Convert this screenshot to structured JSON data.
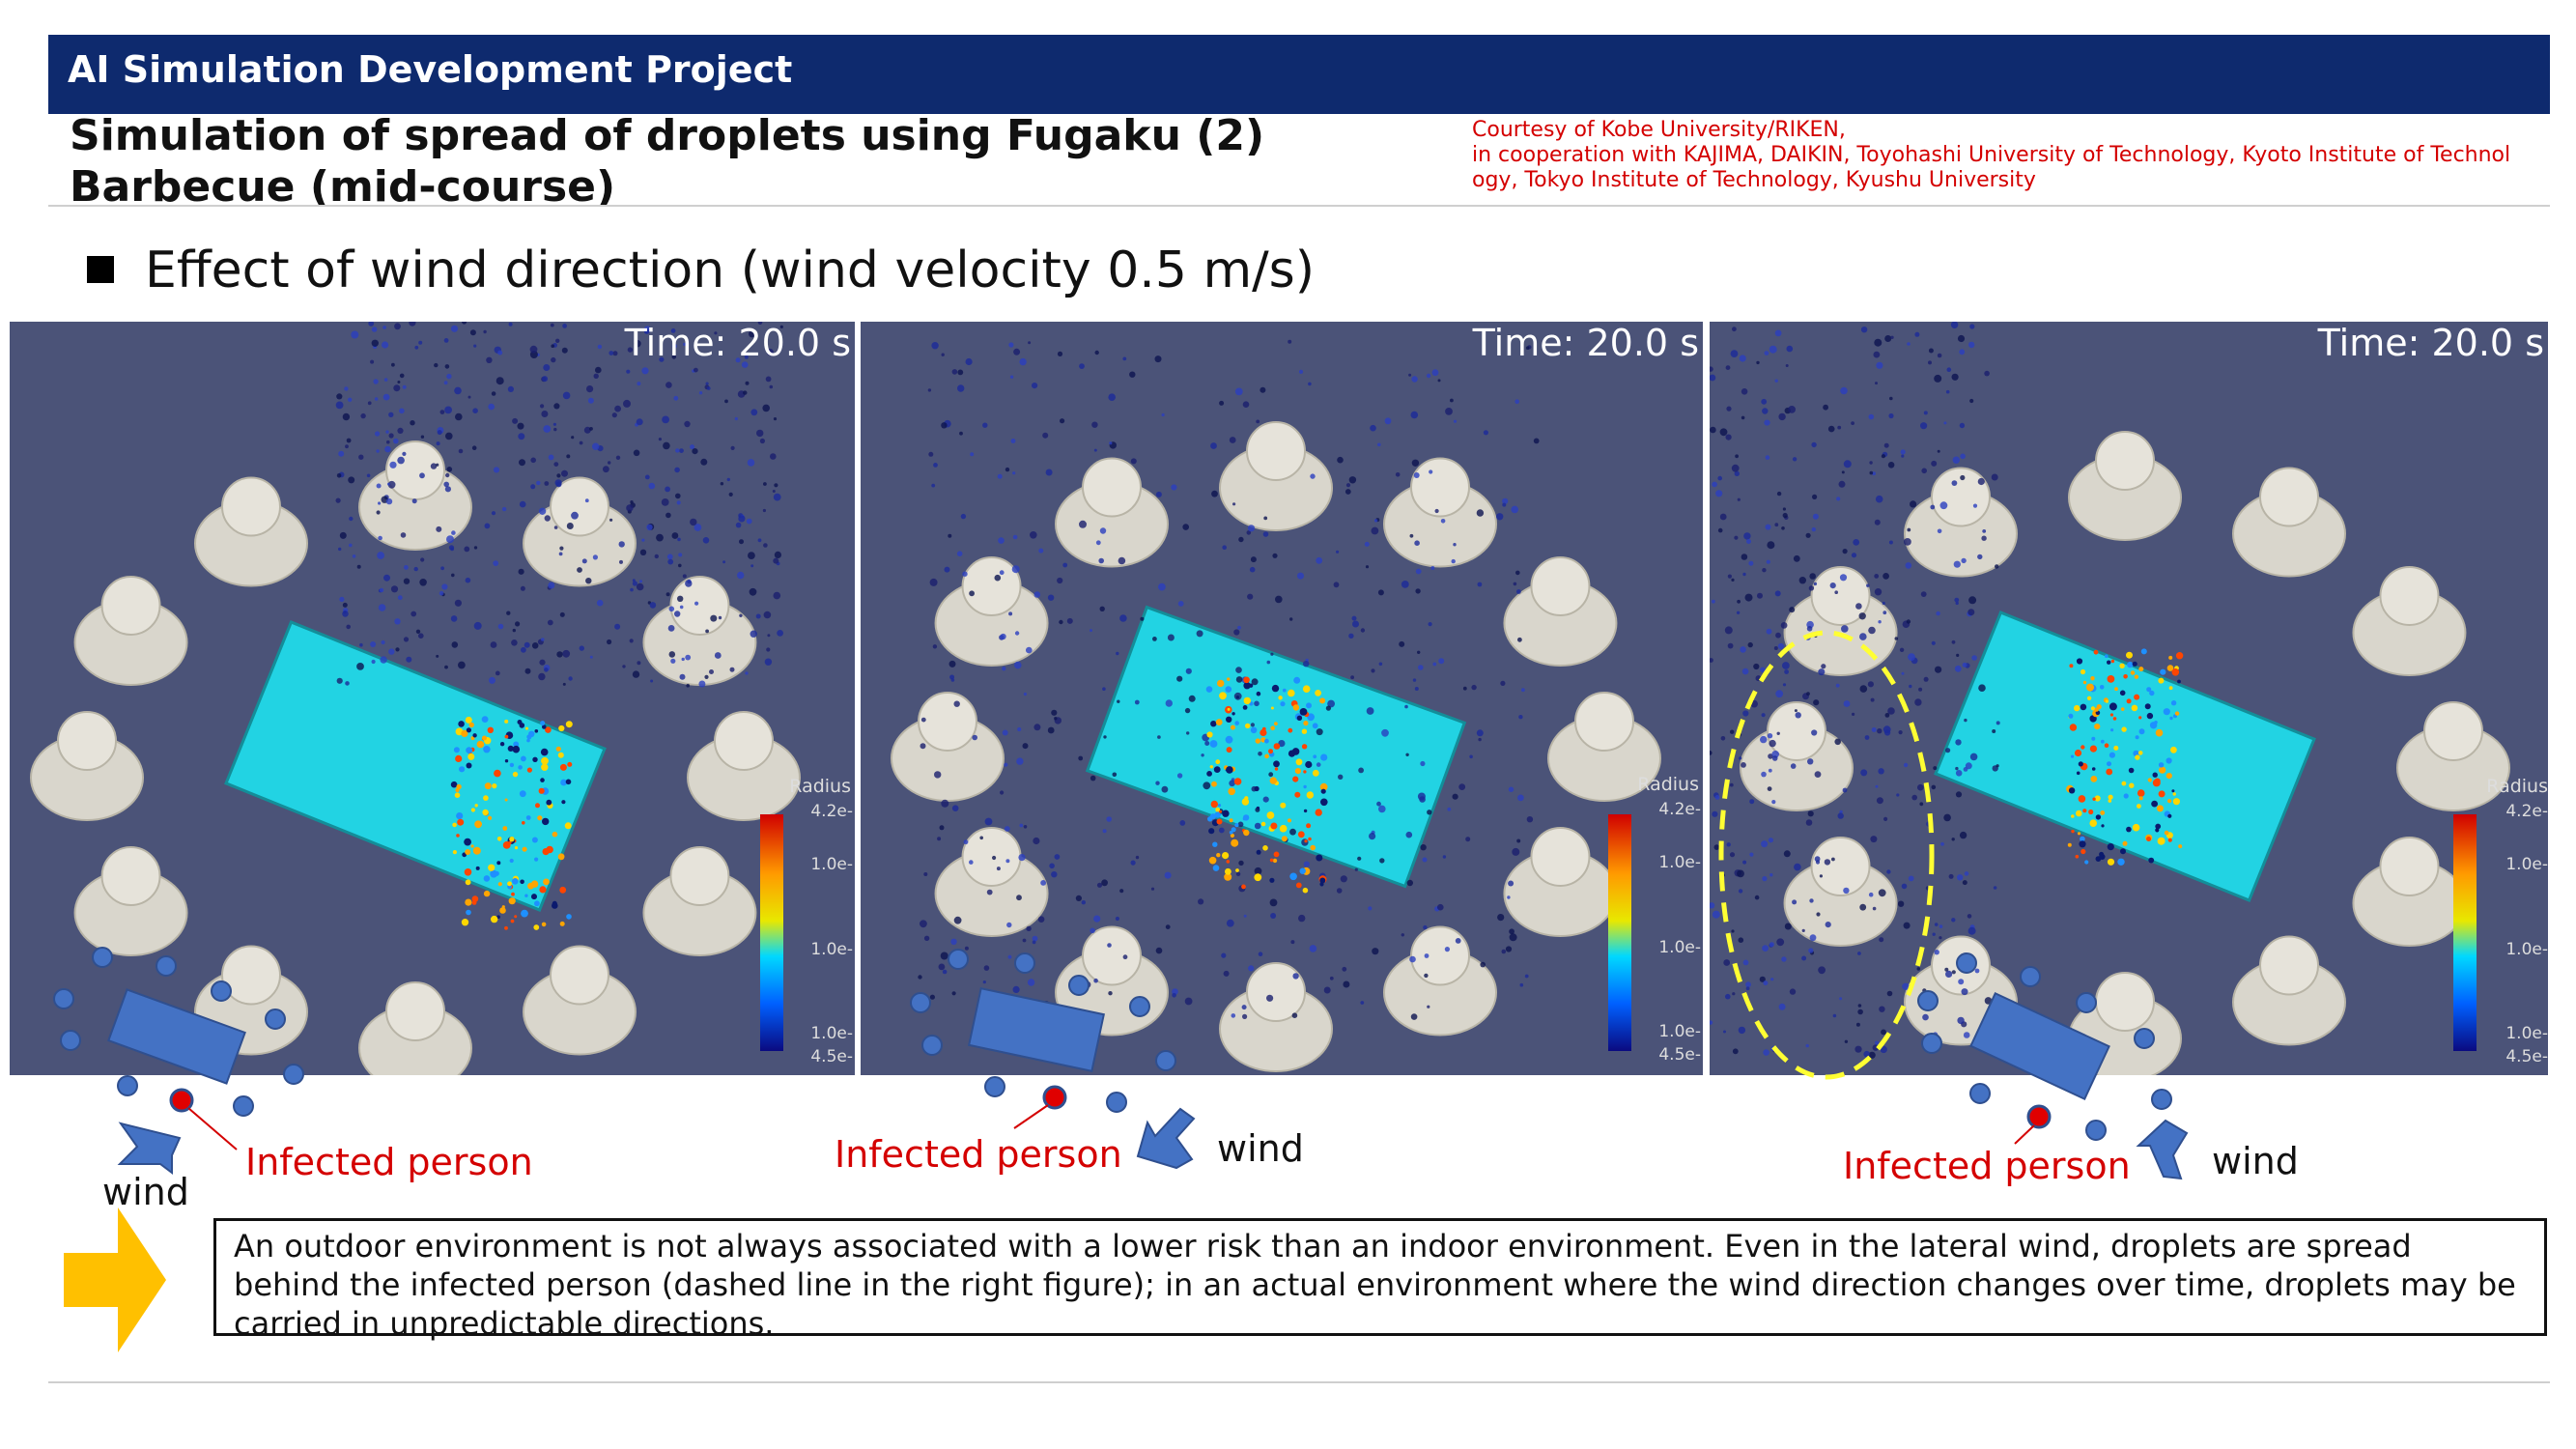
{
  "header": {
    "title": "AI Simulation Development Project"
  },
  "slide": {
    "title_line1": "Simulation of spread of droplets using Fugaku (2)",
    "title_line2": "Barbecue (mid-course)",
    "courtesy": [
      "Courtesy of Kobe University/RIKEN,",
      "in cooperation with KAJIMA, DAIKIN, Toyohashi University of Technology, Kyoto Institute of Technol",
      "ogy, Tokyo Institute of Technology, Kyushu University"
    ],
    "bullet": "Effect of wind direction (wind velocity 0.5 m/s)"
  },
  "panels": [
    {
      "time": "Time: 20.0 s",
      "colorbar_title": "Radius",
      "colorbar_values": [
        "4.2e-",
        "1.0e-",
        "1.0e-",
        "1.0e-",
        "4.5e-"
      ]
    },
    {
      "time": "Time: 20.0 s",
      "colorbar_title": "Radius",
      "colorbar_values": [
        "4.2e-",
        "1.0e-",
        "1.0e-",
        "1.0e-",
        "4.5e-"
      ]
    },
    {
      "time": "Time: 20.0 s",
      "colorbar_title": "Radius",
      "colorbar_values": [
        "4.2e-",
        "1.0e-",
        "1.0e-",
        "1.0e-",
        "4.5e-"
      ]
    }
  ],
  "diagrams": [
    {
      "infected_label": "Infected person",
      "wind_label": "wind"
    },
    {
      "infected_label": "Infected person",
      "wind_label": "wind"
    },
    {
      "infected_label": "Infected person",
      "wind_label": "wind"
    }
  ],
  "note": "An outdoor environment is not always associated with a lower risk than an indoor environment. Even in the lateral wind, droplets are spread behind the infected person (dashed line in the right figure); in an actual environment where the wind direction changes over time, droplets may be carried in unpredictable directions.",
  "colors": {
    "header_bg": "#0e2a6e",
    "accent_red": "#d40000",
    "table_cyan": "#22d3e3",
    "panel_bg": "#4b5378",
    "diagram_blue": "#4472c4",
    "arrow_yellow": "#ffc000",
    "dashed_yellow": "#ffff33"
  }
}
